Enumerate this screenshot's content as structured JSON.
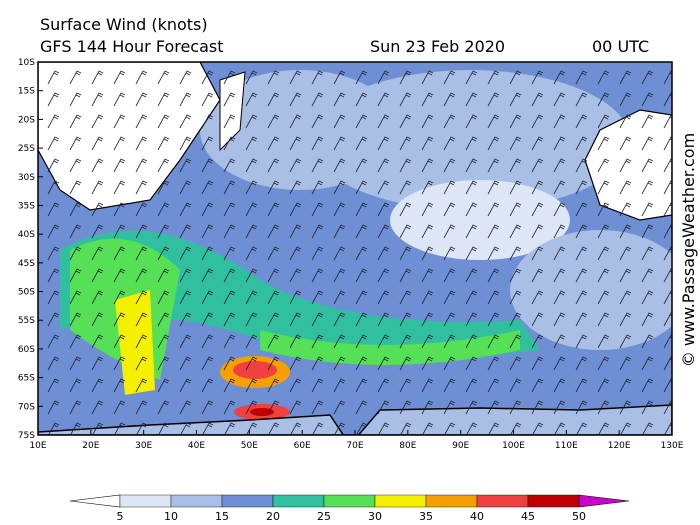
{
  "header": {
    "title": "Surface Wind (knots)",
    "subtitle": "GFS 144 Hour Forecast",
    "date": "Sun 23 Feb 2020",
    "time": "00 UTC"
  },
  "latitudes": [
    "10S",
    "15S",
    "20S",
    "25S",
    "30S",
    "35S",
    "40S",
    "45S",
    "50S",
    "55S",
    "60S",
    "65S",
    "70S",
    "75S"
  ],
  "longitudes": [
    "10E",
    "20E",
    "30E",
    "40E",
    "50E",
    "60E",
    "70E",
    "80E",
    "90E",
    "100E",
    "110E",
    "120E",
    "130E"
  ],
  "legend": {
    "labels": [
      "5",
      "10",
      "15",
      "20",
      "25",
      "30",
      "35",
      "40",
      "45",
      "50"
    ]
  },
  "credit": "© www.PassageWeather.com"
}
